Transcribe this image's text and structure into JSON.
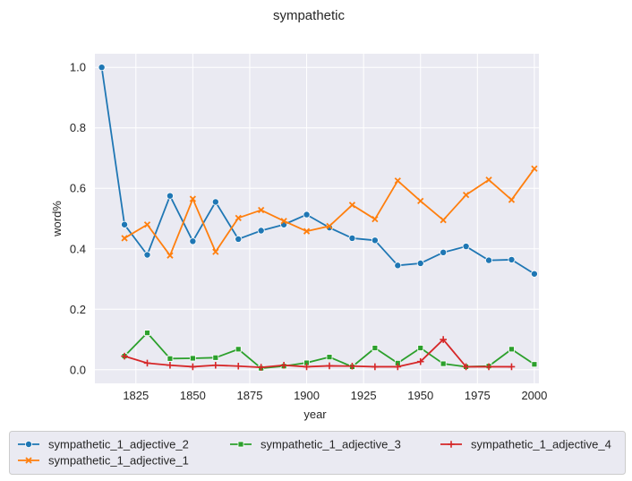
{
  "chart_data": {
    "type": "line",
    "title": "sympathetic",
    "xlabel": "year",
    "ylabel": "word%",
    "xlim": [
      1807,
      2002
    ],
    "ylim": [
      -0.045,
      1.045
    ],
    "xticks": [
      1825,
      1850,
      1875,
      1900,
      1925,
      1950,
      1975,
      2000
    ],
    "yticks": [
      0.0,
      0.2,
      0.4,
      0.6,
      0.8,
      1.0
    ],
    "xtick_labels": [
      "1825",
      "1850",
      "1875",
      "1900",
      "1925",
      "1950",
      "1975",
      "2000"
    ],
    "ytick_labels": [
      "0.0",
      "0.2",
      "0.4",
      "0.6",
      "0.8",
      "1.0"
    ],
    "grid": true,
    "legend_position": "bottom",
    "series": [
      {
        "name": "sympathetic_1_adjective_2",
        "color": "#1f77b4",
        "marker": "circle",
        "x": [
          1810,
          1820,
          1830,
          1840,
          1850,
          1860,
          1870,
          1880,
          1890,
          1900,
          1910,
          1920,
          1930,
          1940,
          1950,
          1960,
          1970,
          1980,
          1990,
          2000
        ],
        "values": [
          1.0,
          0.48,
          0.38,
          0.575,
          0.425,
          0.555,
          0.432,
          0.46,
          0.48,
          0.513,
          0.47,
          0.435,
          0.428,
          0.345,
          0.352,
          0.388,
          0.408,
          0.362,
          0.364,
          0.317
        ]
      },
      {
        "name": "sympathetic_1_adjective_1",
        "color": "#ff7f0e",
        "marker": "x",
        "x": [
          1820,
          1830,
          1840,
          1850,
          1860,
          1870,
          1880,
          1890,
          1900,
          1910,
          1920,
          1930,
          1940,
          1950,
          1960,
          1970,
          1980,
          1990,
          2000
        ],
        "values": [
          0.435,
          0.48,
          0.378,
          0.565,
          0.39,
          0.502,
          0.528,
          0.492,
          0.458,
          0.475,
          0.545,
          0.498,
          0.625,
          0.558,
          0.495,
          0.578,
          0.628,
          0.562,
          0.665
        ]
      },
      {
        "name": "sympathetic_1_adjective_3",
        "color": "#2ca02c",
        "marker": "square",
        "x": [
          1820,
          1830,
          1840,
          1850,
          1860,
          1870,
          1880,
          1890,
          1900,
          1910,
          1920,
          1930,
          1940,
          1950,
          1960,
          1970,
          1980,
          1990,
          2000
        ],
        "values": [
          0.045,
          0.122,
          0.037,
          0.038,
          0.04,
          0.068,
          0.005,
          0.012,
          0.023,
          0.042,
          0.01,
          0.072,
          0.022,
          0.072,
          0.02,
          0.01,
          0.012,
          0.068,
          0.018
        ]
      },
      {
        "name": "sympathetic_1_adjective_4",
        "color": "#d62728",
        "marker": "plus",
        "x": [
          1820,
          1830,
          1840,
          1850,
          1860,
          1870,
          1880,
          1890,
          1900,
          1910,
          1920,
          1930,
          1940,
          1950,
          1960,
          1970,
          1980,
          1990
        ],
        "values": [
          0.045,
          0.022,
          0.015,
          0.01,
          0.015,
          0.012,
          0.008,
          0.015,
          0.01,
          0.013,
          0.012,
          0.01,
          0.01,
          0.027,
          0.1,
          0.01,
          0.01,
          0.01
        ]
      }
    ]
  }
}
